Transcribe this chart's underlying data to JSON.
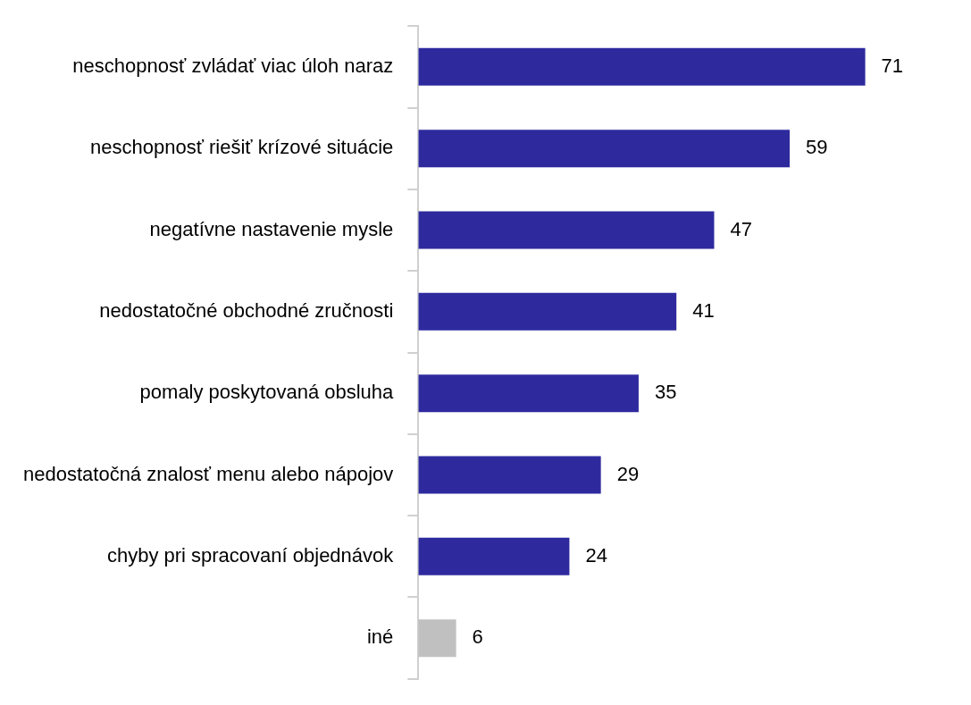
{
  "chart_data": {
    "type": "bar",
    "orientation": "horizontal",
    "categories": [
      "neschopnosť zvládať viac úloh naraz",
      "neschopnosť riešiť krízové situácie",
      "negatívne nastavenie mysle",
      "nedostatočné obchodné zručnosti",
      "pomaly poskytovaná obsluha",
      "nedostatočná znalosť menu alebo nápojov",
      "chyby pri spracovaní objednávok",
      "iné"
    ],
    "values": [
      71,
      59,
      47,
      41,
      35,
      29,
      24,
      6
    ],
    "colors": [
      "#2e2a9e",
      "#2e2a9e",
      "#2e2a9e",
      "#2e2a9e",
      "#2e2a9e",
      "#2e2a9e",
      "#2e2a9e",
      "#c0c0c0"
    ],
    "data_labels": true,
    "legend": false
  }
}
